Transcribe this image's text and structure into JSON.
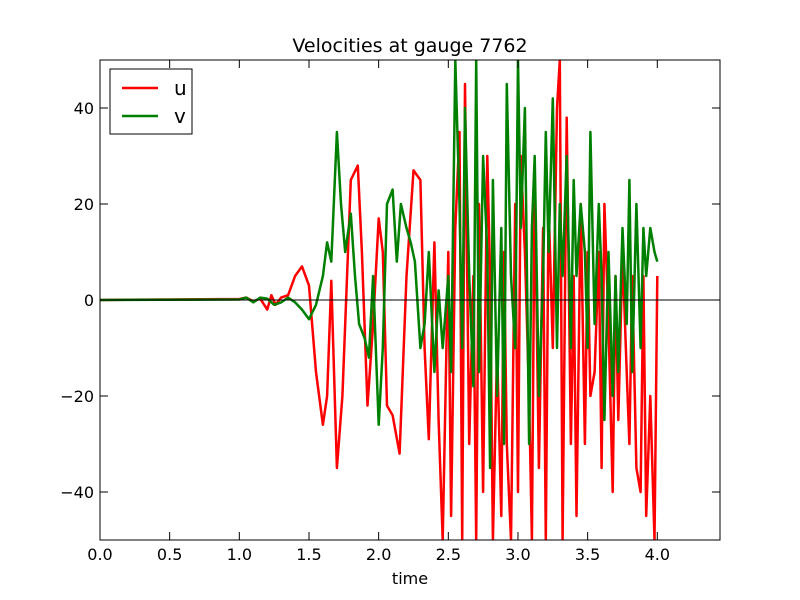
{
  "chart_data": {
    "type": "line",
    "title": "Velocities at gauge 7762",
    "xlabel": "time",
    "ylabel": "",
    "xlim": [
      0.0,
      4.45
    ],
    "ylim": [
      -50,
      50
    ],
    "xticks": [
      "0.0",
      "0.5",
      "1.0",
      "1.5",
      "2.0",
      "2.5",
      "3.0",
      "3.5",
      "4.0"
    ],
    "xtick_values": [
      0.0,
      0.5,
      1.0,
      1.5,
      2.0,
      2.5,
      3.0,
      3.5,
      4.0
    ],
    "yticks": [
      "−40",
      "−20",
      "0",
      "20",
      "40"
    ],
    "ytick_values": [
      -40,
      -20,
      0,
      20,
      40
    ],
    "grid": false,
    "legend_position": "top-left",
    "baseline": 0,
    "series": [
      {
        "name": "u",
        "color": "#ff0000",
        "x": [
          0.0,
          1.0,
          1.05,
          1.1,
          1.15,
          1.2,
          1.23,
          1.26,
          1.3,
          1.35,
          1.4,
          1.45,
          1.5,
          1.55,
          1.6,
          1.63,
          1.66,
          1.7,
          1.74,
          1.8,
          1.85,
          1.88,
          1.92,
          1.96,
          2.0,
          2.03,
          2.06,
          2.1,
          2.15,
          2.2,
          2.25,
          2.3,
          2.33,
          2.36,
          2.4,
          2.43,
          2.46,
          2.5,
          2.52,
          2.55,
          2.58,
          2.6,
          2.62,
          2.65,
          2.68,
          2.7,
          2.72,
          2.75,
          2.78,
          2.8,
          2.82,
          2.85,
          2.88,
          2.9,
          2.92,
          2.95,
          2.98,
          3.0,
          3.02,
          3.05,
          3.08,
          3.1,
          3.12,
          3.15,
          3.18,
          3.2,
          3.22,
          3.25,
          3.28,
          3.3,
          3.32,
          3.35,
          3.38,
          3.4,
          3.42,
          3.45,
          3.48,
          3.5,
          3.52,
          3.55,
          3.58,
          3.6,
          3.62,
          3.65,
          3.68,
          3.7,
          3.72,
          3.75,
          3.78,
          3.8,
          3.82,
          3.85,
          3.88,
          3.9,
          3.92,
          3.95,
          3.98,
          4.0
        ],
        "values": [
          0.0,
          0.2,
          0.5,
          -0.3,
          0.3,
          -2.0,
          1.0,
          -1.0,
          0.5,
          1.0,
          5.0,
          7.0,
          3.0,
          -15.0,
          -26.0,
          -20.0,
          4.0,
          -35.0,
          -20.0,
          25.0,
          28.0,
          10.0,
          -22.0,
          -5.0,
          17.0,
          10.0,
          -22.0,
          -24.0,
          -32.0,
          5.0,
          27.0,
          25.0,
          -10.0,
          -29.0,
          12.0,
          -25.0,
          -50.0,
          10.0,
          -45.0,
          15.0,
          35.0,
          -50.0,
          45.0,
          -30.0,
          5.0,
          -50.0,
          20.0,
          -40.0,
          30.0,
          5.0,
          -50.0,
          -10.0,
          -45.0,
          10.0,
          -30.0,
          -50.0,
          20.0,
          -40.0,
          30.0,
          10.0,
          -20.0,
          -50.0,
          25.0,
          -35.0,
          15.0,
          -50.0,
          20.0,
          -10.0,
          40.0,
          50.0,
          -50.0,
          38.0,
          -30.0,
          5.0,
          -45.0,
          20.0,
          -30.0,
          10.0,
          -20.0,
          -15.0,
          10.0,
          -35.0,
          20.0,
          -5.0,
          -40.0,
          5.0,
          -25.0,
          10.0,
          -15.0,
          -30.0,
          5.0,
          -35.0,
          -40.0,
          5.0,
          -45.0,
          -20.0,
          -50.0,
          5.0
        ]
      },
      {
        "name": "v",
        "color": "#008000",
        "x": [
          0.0,
          1.0,
          1.05,
          1.1,
          1.15,
          1.2,
          1.25,
          1.3,
          1.35,
          1.4,
          1.45,
          1.5,
          1.55,
          1.6,
          1.63,
          1.66,
          1.7,
          1.73,
          1.76,
          1.8,
          1.83,
          1.86,
          1.9,
          1.93,
          1.96,
          2.0,
          2.03,
          2.06,
          2.1,
          2.13,
          2.16,
          2.2,
          2.23,
          2.26,
          2.3,
          2.33,
          2.36,
          2.4,
          2.43,
          2.46,
          2.5,
          2.52,
          2.55,
          2.58,
          2.6,
          2.62,
          2.65,
          2.68,
          2.7,
          2.72,
          2.75,
          2.78,
          2.8,
          2.82,
          2.85,
          2.88,
          2.9,
          2.92,
          2.95,
          2.98,
          3.0,
          3.02,
          3.05,
          3.08,
          3.1,
          3.12,
          3.15,
          3.18,
          3.2,
          3.22,
          3.25,
          3.28,
          3.3,
          3.32,
          3.35,
          3.38,
          3.4,
          3.42,
          3.45,
          3.48,
          3.5,
          3.52,
          3.55,
          3.58,
          3.6,
          3.62,
          3.65,
          3.68,
          3.7,
          3.72,
          3.75,
          3.78,
          3.8,
          3.82,
          3.85,
          3.88,
          3.9,
          3.92,
          3.95,
          3.98,
          4.0
        ],
        "values": [
          0.0,
          0.1,
          0.5,
          -0.5,
          0.5,
          0.3,
          -1.0,
          -0.5,
          0.5,
          -0.5,
          -2.0,
          -4.0,
          -1.0,
          5.0,
          12.0,
          8.0,
          35.0,
          20.0,
          10.0,
          18.0,
          5.0,
          -5.0,
          -8.0,
          -12.0,
          5.0,
          -26.0,
          -10.0,
          20.0,
          23.0,
          8.0,
          20.0,
          15.0,
          12.0,
          8.0,
          -10.0,
          -5.0,
          10.0,
          -15.0,
          2.0,
          -10.0,
          5.0,
          -15.0,
          50.0,
          20.0,
          -10.0,
          40.0,
          5.0,
          -18.0,
          50.0,
          -15.0,
          30.0,
          10.0,
          -35.0,
          25.0,
          -20.0,
          15.0,
          -30.0,
          45.0,
          5.0,
          -10.0,
          50.0,
          15.0,
          40.0,
          -30.0,
          15.0,
          30.0,
          -20.0,
          5.0,
          35.0,
          10.0,
          42.0,
          -10.0,
          20.0,
          5.0,
          30.0,
          -10.0,
          25.0,
          5.0,
          20.0,
          10.0,
          -10.0,
          35.0,
          -5.0,
          20.0,
          5.0,
          -25.0,
          10.0,
          -20.0,
          5.0,
          -15.0,
          15.0,
          -5.0,
          25.0,
          -15.0,
          20.0,
          -10.0,
          15.0,
          5.0,
          15.0,
          10.0,
          8.0
        ]
      }
    ]
  }
}
